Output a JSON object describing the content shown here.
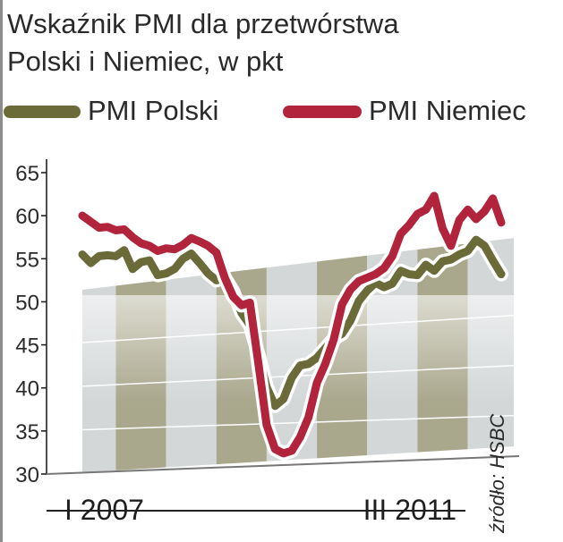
{
  "title_line1": "Wskaźnik PMI dla przetwórstwa",
  "title_line2": "Polski i Niemiec, w pkt",
  "legend": [
    {
      "label": "PMI Polski",
      "color": "#6b6a39"
    },
    {
      "label": "PMI Niemiec",
      "color": "#b2243c"
    }
  ],
  "source": "źródło: HSBC",
  "chart_data": {
    "type": "line",
    "y_ticks": [
      "65",
      "60",
      "55",
      "50",
      "45",
      "40",
      "35",
      "30"
    ],
    "ylim": [
      30,
      65
    ],
    "x_tick_labels": [
      "I 2007",
      "III 2011"
    ],
    "x_range": [
      "2007-01",
      "2011-03"
    ],
    "grid": true,
    "colors": {
      "polski": "#6b6a39",
      "niemcy": "#b2243c",
      "band_light": "#d3d7d8",
      "band_dark": "#a9a78c"
    },
    "x": [
      "2007-01",
      "2007-02",
      "2007-03",
      "2007-04",
      "2007-05",
      "2007-06",
      "2007-07",
      "2007-08",
      "2007-09",
      "2007-10",
      "2007-11",
      "2007-12",
      "2008-01",
      "2008-02",
      "2008-03",
      "2008-04",
      "2008-05",
      "2008-06",
      "2008-07",
      "2008-08",
      "2008-09",
      "2008-10",
      "2008-11",
      "2008-12",
      "2009-01",
      "2009-02",
      "2009-03",
      "2009-04",
      "2009-05",
      "2009-06",
      "2009-07",
      "2009-08",
      "2009-09",
      "2009-10",
      "2009-11",
      "2009-12",
      "2010-01",
      "2010-02",
      "2010-03",
      "2010-04",
      "2010-05",
      "2010-06",
      "2010-07",
      "2010-08",
      "2010-09",
      "2010-10",
      "2010-11",
      "2010-12",
      "2011-01",
      "2011-02",
      "2011-03"
    ],
    "series": [
      {
        "name": "PMI Polski",
        "values": [
          55.5,
          54.5,
          55.3,
          55.4,
          55.3,
          56.0,
          53.8,
          54.6,
          54.8,
          53.1,
          53.3,
          53.8,
          55.0,
          55.6,
          54.5,
          53.3,
          52.5,
          52.8,
          51.2,
          48.7,
          47.3,
          43.9,
          40.1,
          37.9,
          38.7,
          41.2,
          42.6,
          42.8,
          43.5,
          44.6,
          45.7,
          46.3,
          47.8,
          50.1,
          51.3,
          52.2,
          51.7,
          52.1,
          53.6,
          53.2,
          53.1,
          54.3,
          53.6,
          54.7,
          54.9,
          55.5,
          55.9,
          57.2,
          56.5,
          54.8,
          53.2
        ]
      },
      {
        "name": "PMI Niemiec",
        "values": [
          60.0,
          59.3,
          58.6,
          58.7,
          58.3,
          58.4,
          57.5,
          56.8,
          56.5,
          55.9,
          56.2,
          56.1,
          56.6,
          57.4,
          57.0,
          56.5,
          55.7,
          52.8,
          50.6,
          49.6,
          49.9,
          42.9,
          35.7,
          32.9,
          32.4,
          32.7,
          34.3,
          36.6,
          40.6,
          42.8,
          45.6,
          49.7,
          51.4,
          52.4,
          52.8,
          53.2,
          53.9,
          55.3,
          57.9,
          58.9,
          60.2,
          60.7,
          62.3,
          58.5,
          56.5,
          59.5,
          60.7,
          59.6,
          60.5,
          62.0,
          59.2
        ]
      }
    ]
  }
}
